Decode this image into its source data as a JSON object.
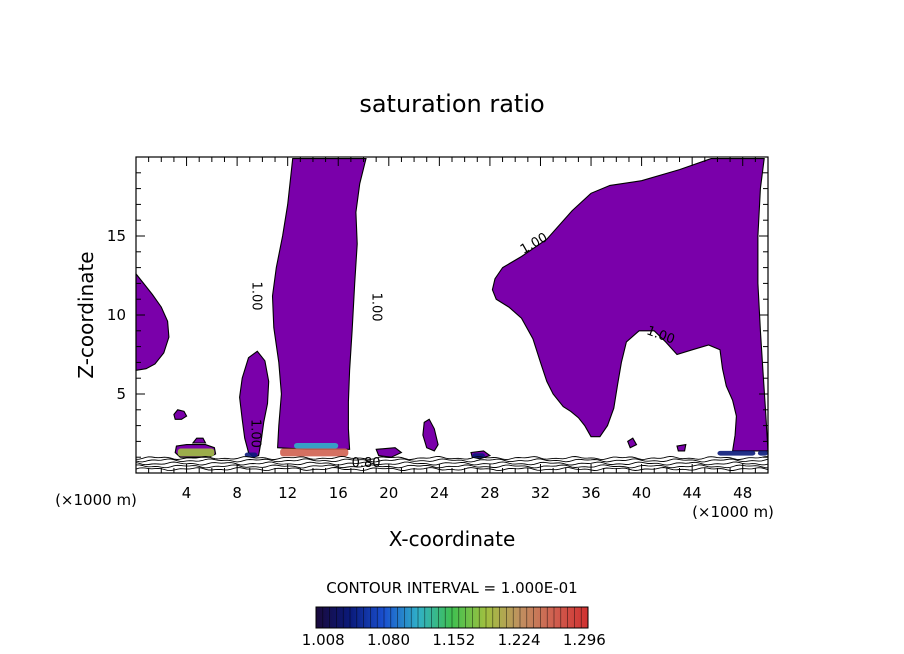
{
  "chart_data": {
    "type": "contour",
    "title": "saturation ratio",
    "xlabel": "X-coordinate",
    "ylabel": "Z-coordinate",
    "x_unit_label": "(×1000 m)",
    "xlim": [
      0,
      50
    ],
    "ylim": [
      0,
      20
    ],
    "x_ticks": [
      "4",
      "8",
      "12",
      "16",
      "20",
      "24",
      "28",
      "32",
      "36",
      "40",
      "44",
      "48"
    ],
    "y_ticks": [
      "5",
      "10",
      "15"
    ],
    "contour_interval_label": "CONTOUR INTERVAL = 1.000E-01",
    "contour_labels": [
      {
        "text": "1.00",
        "x": 9.5,
        "y": 11.2,
        "rotation": 90
      },
      {
        "text": "1.00",
        "x": 19.0,
        "y": 10.5,
        "rotation": 90
      },
      {
        "text": "1.00",
        "x": 31.5,
        "y": 14.5,
        "rotation": -30
      },
      {
        "text": "1.00",
        "x": 41.5,
        "y": 8.7,
        "rotation": 20
      },
      {
        "text": "1.00",
        "x": 9.4,
        "y": 2.5,
        "rotation": 90
      },
      {
        "text": "0.80",
        "x": 18.2,
        "y": 0.6,
        "rotation": 0
      }
    ],
    "colorbar": {
      "ticks": [
        "1.008",
        "1.080",
        "1.152",
        "1.224",
        "1.296"
      ],
      "range": [
        1.0,
        1.3
      ],
      "colors": [
        "#1a0a3c",
        "#0a1a7a",
        "#1a50d0",
        "#30b0c8",
        "#40c050",
        "#a0c040",
        "#c09060",
        "#d06050",
        "#d03030"
      ]
    },
    "fill_color": "#7a00aa",
    "regions": [
      {
        "name": "left-edge-plume",
        "points": [
          [
            0,
            12.6
          ],
          [
            0.6,
            12
          ],
          [
            1.3,
            11.3
          ],
          [
            2,
            10.5
          ],
          [
            2.5,
            9.6
          ],
          [
            2.6,
            8.6
          ],
          [
            2.2,
            7.6
          ],
          [
            1.5,
            6.9
          ],
          [
            0.8,
            6.6
          ],
          [
            0,
            6.5
          ]
        ]
      },
      {
        "name": "small-plume-x9",
        "points": [
          [
            8.4,
            6
          ],
          [
            8.9,
            7.3
          ],
          [
            9.6,
            7.7
          ],
          [
            10.2,
            7.1
          ],
          [
            10.5,
            5.8
          ],
          [
            10.4,
            4.4
          ],
          [
            10.1,
            3.2
          ],
          [
            9.9,
            2
          ],
          [
            9.7,
            1.1
          ],
          [
            9.3,
            1
          ],
          [
            8.9,
            1.3
          ],
          [
            8.6,
            2.2
          ],
          [
            8.4,
            3.4
          ],
          [
            8.2,
            4.8
          ]
        ]
      },
      {
        "name": "central-plume",
        "points": [
          [
            12.4,
            19.9
          ],
          [
            18.2,
            19.9
          ],
          [
            17.7,
            18.3
          ],
          [
            17.4,
            16.5
          ],
          [
            17.5,
            14.5
          ],
          [
            17.3,
            12
          ],
          [
            17.1,
            9
          ],
          [
            16.9,
            6.5
          ],
          [
            16.8,
            4.5
          ],
          [
            16.8,
            2.8
          ],
          [
            16.9,
            1.5
          ],
          [
            13.5,
            1.5
          ],
          [
            11.2,
            1.6
          ],
          [
            11.3,
            3
          ],
          [
            11.5,
            5
          ],
          [
            11.3,
            7
          ],
          [
            10.9,
            9.2
          ],
          [
            10.8,
            11.2
          ],
          [
            11.1,
            13
          ],
          [
            11.6,
            15
          ],
          [
            12,
            17
          ]
        ]
      },
      {
        "name": "right-plume",
        "points": [
          [
            29,
            13
          ],
          [
            30.5,
            13.7
          ],
          [
            32.5,
            14.8
          ],
          [
            34.5,
            16.6
          ],
          [
            36,
            17.7
          ],
          [
            37.5,
            18.2
          ],
          [
            40,
            18.5
          ],
          [
            43,
            19.2
          ],
          [
            45.5,
            19.9
          ],
          [
            49.7,
            19.9
          ],
          [
            49.4,
            18
          ],
          [
            49.2,
            15
          ],
          [
            49.2,
            12
          ],
          [
            49.4,
            9
          ],
          [
            49.6,
            6.5
          ],
          [
            49.8,
            4
          ],
          [
            50,
            1.4
          ],
          [
            47.2,
            1.4
          ],
          [
            47.4,
            2.4
          ],
          [
            47.5,
            3.6
          ],
          [
            47.2,
            4.6
          ],
          [
            46.7,
            5.5
          ],
          [
            46.4,
            6.6
          ],
          [
            46.2,
            7.8
          ],
          [
            45.3,
            8.1
          ],
          [
            44,
            7.8
          ],
          [
            42.8,
            7.5
          ],
          [
            41.9,
            8.3
          ],
          [
            41,
            9
          ],
          [
            39.8,
            9
          ],
          [
            38.8,
            8.3
          ],
          [
            38.4,
            7
          ],
          [
            38.1,
            5.6
          ],
          [
            37.8,
            4.1
          ],
          [
            37.3,
            3
          ],
          [
            36.7,
            2.3
          ],
          [
            36,
            2.3
          ],
          [
            35.5,
            3
          ],
          [
            35,
            3.5
          ],
          [
            34.4,
            3.9
          ],
          [
            33.8,
            4.2
          ],
          [
            33,
            5
          ],
          [
            32.5,
            5.8
          ],
          [
            32,
            7
          ],
          [
            31.4,
            8.5
          ],
          [
            30.5,
            9.8
          ],
          [
            29.5,
            10.5
          ],
          [
            28.5,
            11
          ],
          [
            28.2,
            11.6
          ],
          [
            28.4,
            12.3
          ]
        ]
      },
      {
        "name": "blob-x3",
        "points": [
          [
            3,
            3.7
          ],
          [
            3.3,
            4
          ],
          [
            3.8,
            3.9
          ],
          [
            4,
            3.6
          ],
          [
            3.6,
            3.4
          ],
          [
            3.1,
            3.4
          ]
        ]
      },
      {
        "name": "blob-x4",
        "points": [
          [
            3.2,
            1.7
          ],
          [
            4,
            1.8
          ],
          [
            5.5,
            1.8
          ],
          [
            6.2,
            1.6
          ],
          [
            6.3,
            1.2
          ],
          [
            5.8,
            1
          ],
          [
            4.5,
            1
          ],
          [
            3.5,
            1
          ],
          [
            3.1,
            1.3
          ]
        ]
      },
      {
        "name": "blob-x4-top",
        "points": [
          [
            4.5,
            1.9
          ],
          [
            4.8,
            2.2
          ],
          [
            5.3,
            2.2
          ],
          [
            5.5,
            1.9
          ]
        ]
      },
      {
        "name": "blob-x20",
        "points": [
          [
            19,
            1.5
          ],
          [
            20.5,
            1.6
          ],
          [
            21,
            1.3
          ],
          [
            20.2,
            1
          ],
          [
            19.2,
            1.1
          ]
        ]
      },
      {
        "name": "blob-x23",
        "points": [
          [
            22.8,
            3.2
          ],
          [
            23.2,
            3.4
          ],
          [
            23.6,
            2.8
          ],
          [
            23.9,
            1.8
          ],
          [
            23.6,
            1.4
          ],
          [
            23,
            1.6
          ],
          [
            22.7,
            2.4
          ]
        ]
      },
      {
        "name": "blob-x27",
        "points": [
          [
            26.5,
            1.3
          ],
          [
            27.5,
            1.4
          ],
          [
            28,
            1.1
          ],
          [
            27.2,
            0.9
          ],
          [
            26.6,
            1
          ]
        ]
      },
      {
        "name": "blob-x39",
        "points": [
          [
            38.9,
            2
          ],
          [
            39.3,
            2.2
          ],
          [
            39.6,
            1.8
          ],
          [
            39.1,
            1.6
          ]
        ]
      },
      {
        "name": "blob-x43",
        "points": [
          [
            42.8,
            1.7
          ],
          [
            43.5,
            1.8
          ],
          [
            43.4,
            1.4
          ],
          [
            42.9,
            1.4
          ]
        ]
      }
    ],
    "hotspots": [
      {
        "x0": 3.3,
        "x1": 6.2,
        "y0": 1.05,
        "y1": 1.55,
        "level": 1.2
      },
      {
        "x0": 11.4,
        "x1": 16.8,
        "y0": 1.05,
        "y1": 1.55,
        "level": 1.26
      },
      {
        "x0": 12.5,
        "x1": 16.0,
        "y0": 1.55,
        "y1": 1.9,
        "level": 1.1
      },
      {
        "x0": 8.6,
        "x1": 9.6,
        "y0": 1.0,
        "y1": 1.3,
        "level": 1.06
      },
      {
        "x0": 46.0,
        "x1": 49.0,
        "y0": 1.1,
        "y1": 1.4,
        "level": 1.05
      },
      {
        "x0": 49.2,
        "x1": 50.0,
        "y0": 1.1,
        "y1": 1.4,
        "level": 1.05
      },
      {
        "x0": 26.6,
        "x1": 27.6,
        "y0": 0.95,
        "y1": 1.25,
        "level": 1.04
      }
    ],
    "low_contours": [
      0.25,
      0.42,
      0.6,
      0.8,
      0.95
    ]
  }
}
